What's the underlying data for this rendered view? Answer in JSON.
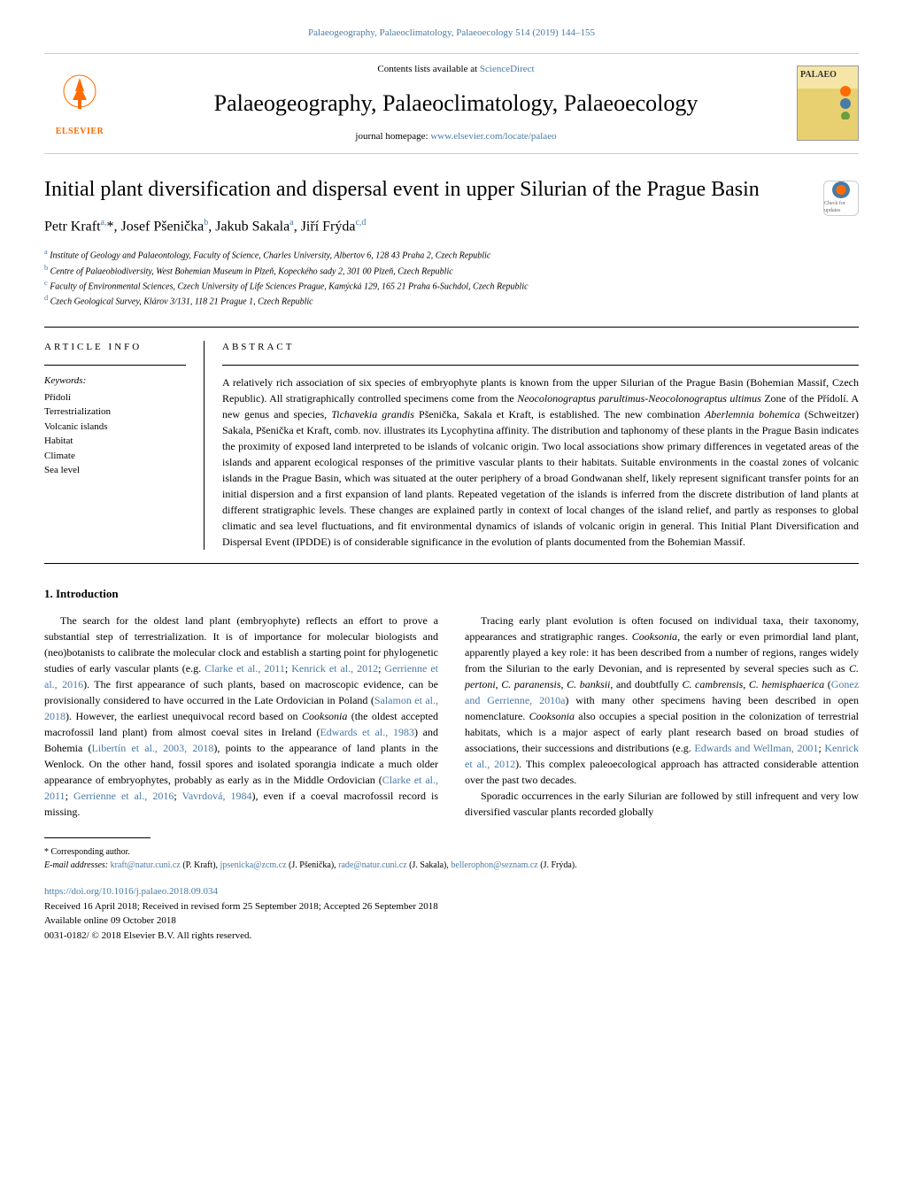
{
  "header": {
    "journal_ref": "Palaeogeography, Palaeoclimatology, Palaeoecology 514 (2019) 144–155",
    "contents_prefix": "Contents lists available at ",
    "contents_link": "ScienceDirect",
    "journal_title": "Palaeogeography, Palaeoclimatology, Palaeoecology",
    "homepage_prefix": "journal homepage: ",
    "homepage_link": "www.elsevier.com/locate/palaeo",
    "elsevier_label": "ELSEVIER",
    "palaeo_label": "PALAEO",
    "check_updates": "Check for updates"
  },
  "article": {
    "title": "Initial plant diversification and dispersal event in upper Silurian of the Prague Basin",
    "authors_html": "Petr Kraft<sup>a,</sup>*, Josef Pšenička<sup>b</sup>, Jakub Sakala<sup>a</sup>, Jiří Frýda<sup>c,d</sup>",
    "affiliations": {
      "a": "Institute of Geology and Palaeontology, Faculty of Science, Charles University, Albertov 6, 128 43 Praha 2, Czech Republic",
      "b": "Centre of Palaeobiodiversity, West Bohemian Museum in Plzeň, Kopeckého sady 2, 301 00 Plzeň, Czech Republic",
      "c": "Faculty of Environmental Sciences, Czech University of Life Sciences Prague, Kamýcká 129, 165 21 Praha 6-Suchdol, Czech Republic",
      "d": "Czech Geological Survey, Klárov 3/131, 118 21 Prague 1, Czech Republic"
    }
  },
  "info": {
    "heading": "ARTICLE INFO",
    "keywords_label": "Keywords:",
    "keywords": [
      "Přídolí",
      "Terrestrialization",
      "Volcanic islands",
      "Habitat",
      "Climate",
      "Sea level"
    ]
  },
  "abstract": {
    "heading": "ABSTRACT",
    "text": "A relatively rich association of six species of embryophyte plants is known from the upper Silurian of the Prague Basin (Bohemian Massif, Czech Republic). All stratigraphically controlled specimens come from the <em>Neocolonograptus parultimus-Neocolonograptus ultimus</em> Zone of the Přídolí. A new genus and species, <em>Tichavekia grandis</em> Pšenička, Sakala et Kraft, is established. The new combination <em>Aberlemnia bohemica</em> (Schweitzer) Sakala, Pšenička et Kraft, comb. nov. illustrates its Lycophytina affinity. The distribution and taphonomy of these plants in the Prague Basin indicates the proximity of exposed land interpreted to be islands of volcanic origin. Two local associations show primary differences in vegetated areas of the islands and apparent ecological responses of the primitive vascular plants to their habitats. Suitable environments in the coastal zones of volcanic islands in the Prague Basin, which was situated at the outer periphery of a broad Gondwanan shelf, likely represent significant transfer points for an initial dispersion and a first expansion of land plants. Repeated vegetation of the islands is inferred from the discrete distribution of land plants at different stratigraphic levels. These changes are explained partly in context of local changes of the island relief, and partly as responses to global climatic and sea level fluctuations, and fit environmental dynamics of islands of volcanic origin in general. This Initial Plant Diversification and Dispersal Event (IPDDE) is of considerable significance in the evolution of plants documented from the Bohemian Massif."
  },
  "body": {
    "section_number": "1.",
    "section_title": "Introduction",
    "para1": "The search for the oldest land plant (embryophyte) reflects an effort to prove a substantial step of terrestrialization. It is of importance for molecular biologists and (neo)botanists to calibrate the molecular clock and establish a starting point for phylogenetic studies of early vascular plants (e.g. <a>Clarke et al., 2011</a>; <a>Kenrick et al., 2012</a>; <a>Gerrienne et al., 2016</a>). The first appearance of such plants, based on macroscopic evidence, can be provisionally considered to have occurred in the Late Ordovician in Poland (<a>Salamon et al., 2018</a>). However, the earliest unequivocal record based on <em>Cooksonia</em> (the oldest accepted macrofossil land plant) from almost coeval sites in Ireland (<a>Edwards et al., 1983</a>) and Bohemia (<a>Libertín et al., 2003, 2018</a>), points to the appearance of land plants in the Wenlock. On the other hand, fossil spores and isolated sporangia indicate a much older appearance of embryophytes, probably as early as in the Middle Ordovician (<a>Clarke et al., 2011</a>; <a>Gerrienne et al., 2016</a>; <a>Vavrdová, 1984</a>), even if a coeval macrofossil record is missing.",
    "para2": "Tracing early plant evolution is often focused on individual taxa, their taxonomy, appearances and stratigraphic ranges. <em>Cooksonia</em>, the early or even primordial land plant, apparently played a key role: it has been described from a number of regions, ranges widely from the Silurian to the early Devonian, and is represented by several species such as <em>C. pertoni</em>, <em>C. paranensis</em>, <em>C. banksii</em>, and doubtfully <em>C. cambrensis</em>, <em>C. hemisphaerica</em> (<a>Gonez and Gerrienne, 2010a</a>) with many other specimens having been described in open nomenclature. <em>Cooksonia</em> also occupies a special position in the colonization of terrestrial habitats, which is a major aspect of early plant research based on broad studies of associations, their successions and distributions (e.g. <a>Edwards and Wellman, 2001</a>; <a>Kenrick et al., 2012</a>). This complex paleoecological approach has attracted considerable attention over the past two decades.",
    "para3": "Sporadic occurrences in the early Silurian are followed by still infrequent and very low diversified vascular plants recorded globally"
  },
  "footer": {
    "corresponding": "* Corresponding author.",
    "email_label": "E-mail addresses: ",
    "emails": [
      {
        "addr": "kraft@natur.cuni.cz",
        "name": "(P. Kraft)"
      },
      {
        "addr": "jpsenicka@zcm.cz",
        "name": "(J. Pšenička)"
      },
      {
        "addr": "rade@natur.cuni.cz",
        "name": "(J. Sakala)"
      },
      {
        "addr": "bellerophon@seznam.cz",
        "name": "(J. Frýda)"
      }
    ],
    "doi": "https://doi.org/10.1016/j.palaeo.2018.09.034",
    "received": "Received 16 April 2018; Received in revised form 25 September 2018; Accepted 26 September 2018",
    "available": "Available online 09 October 2018",
    "copyright": "0031-0182/ © 2018 Elsevier B.V. All rights reserved."
  },
  "colors": {
    "link": "#4a7ba6",
    "elsevier_orange": "#ff6b00"
  }
}
